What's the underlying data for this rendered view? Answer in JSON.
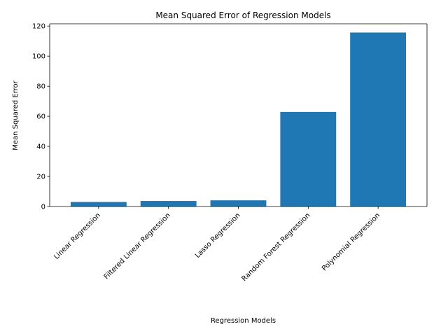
{
  "chart_data": {
    "type": "bar",
    "title": "Mean Squared Error of Regression Models",
    "xlabel": "Regression Models",
    "ylabel": "Mean Squared Error",
    "categories": [
      "Linear Regression",
      "Filtered Linear Regression",
      "Lasso Regression",
      "Random Forest Regression",
      "Polynomial Regression"
    ],
    "values": [
      3.0,
      3.7,
      4.1,
      62.9,
      115.7
    ],
    "ylim": [
      0,
      121.5
    ],
    "yticks": [
      0,
      20,
      40,
      60,
      80,
      100,
      120
    ],
    "grid": false,
    "bar_color": "#1f77b4"
  }
}
